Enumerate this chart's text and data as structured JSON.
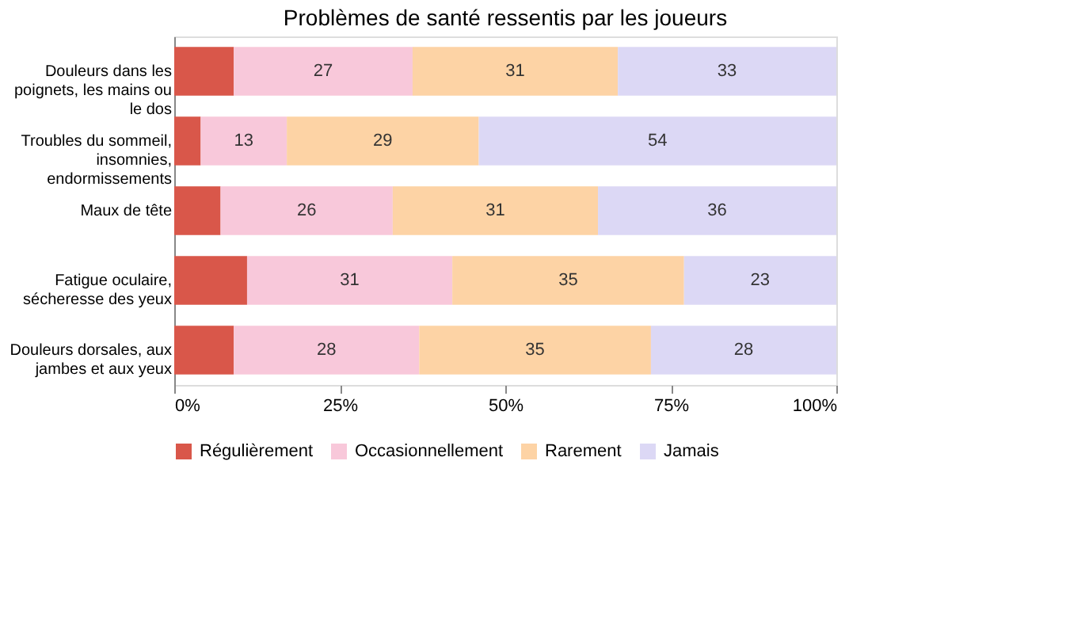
{
  "chart_data": {
    "type": "bar",
    "orientation": "horizontal",
    "stacked": true,
    "title": "Problèmes de santé ressentis par les joueurs",
    "categories": [
      "Douleurs dans les poignets, les mains ou le dos",
      "Troubles du sommeil, insomnies, endormissements",
      "Maux de tête",
      "Fatigue oculaire, sécheresse des yeux",
      "Douleurs dorsales, aux jambes et aux yeux"
    ],
    "series": [
      {
        "name": "Régulièrement",
        "color": "#d9574a",
        "values": [
          9,
          4,
          7,
          11,
          9
        ],
        "value_labels": [
          null,
          null,
          null,
          null,
          null
        ]
      },
      {
        "name": "Occasionnellement",
        "color": "#f8c8da",
        "values": [
          27,
          13,
          26,
          31,
          28
        ],
        "value_labels": [
          "27",
          "13",
          "26",
          "31",
          "28"
        ]
      },
      {
        "name": "Rarement",
        "color": "#fdd3a5",
        "values": [
          31,
          29,
          31,
          35,
          35
        ],
        "value_labels": [
          "31",
          "29",
          "31",
          "35",
          "35"
        ]
      },
      {
        "name": "Jamais",
        "color": "#dcd8f5",
        "values": [
          33,
          54,
          36,
          23,
          28
        ],
        "value_labels": [
          "33",
          "54",
          "36",
          "23",
          "28"
        ]
      }
    ],
    "xlim": [
      0,
      100
    ],
    "xticks": [
      {
        "value": 0,
        "label": "0%"
      },
      {
        "value": 25,
        "label": "25%"
      },
      {
        "value": 50,
        "label": "50%"
      },
      {
        "value": 75,
        "label": "75%"
      },
      {
        "value": 100,
        "label": "100%"
      }
    ],
    "legend": "bottom",
    "grid": false
  }
}
